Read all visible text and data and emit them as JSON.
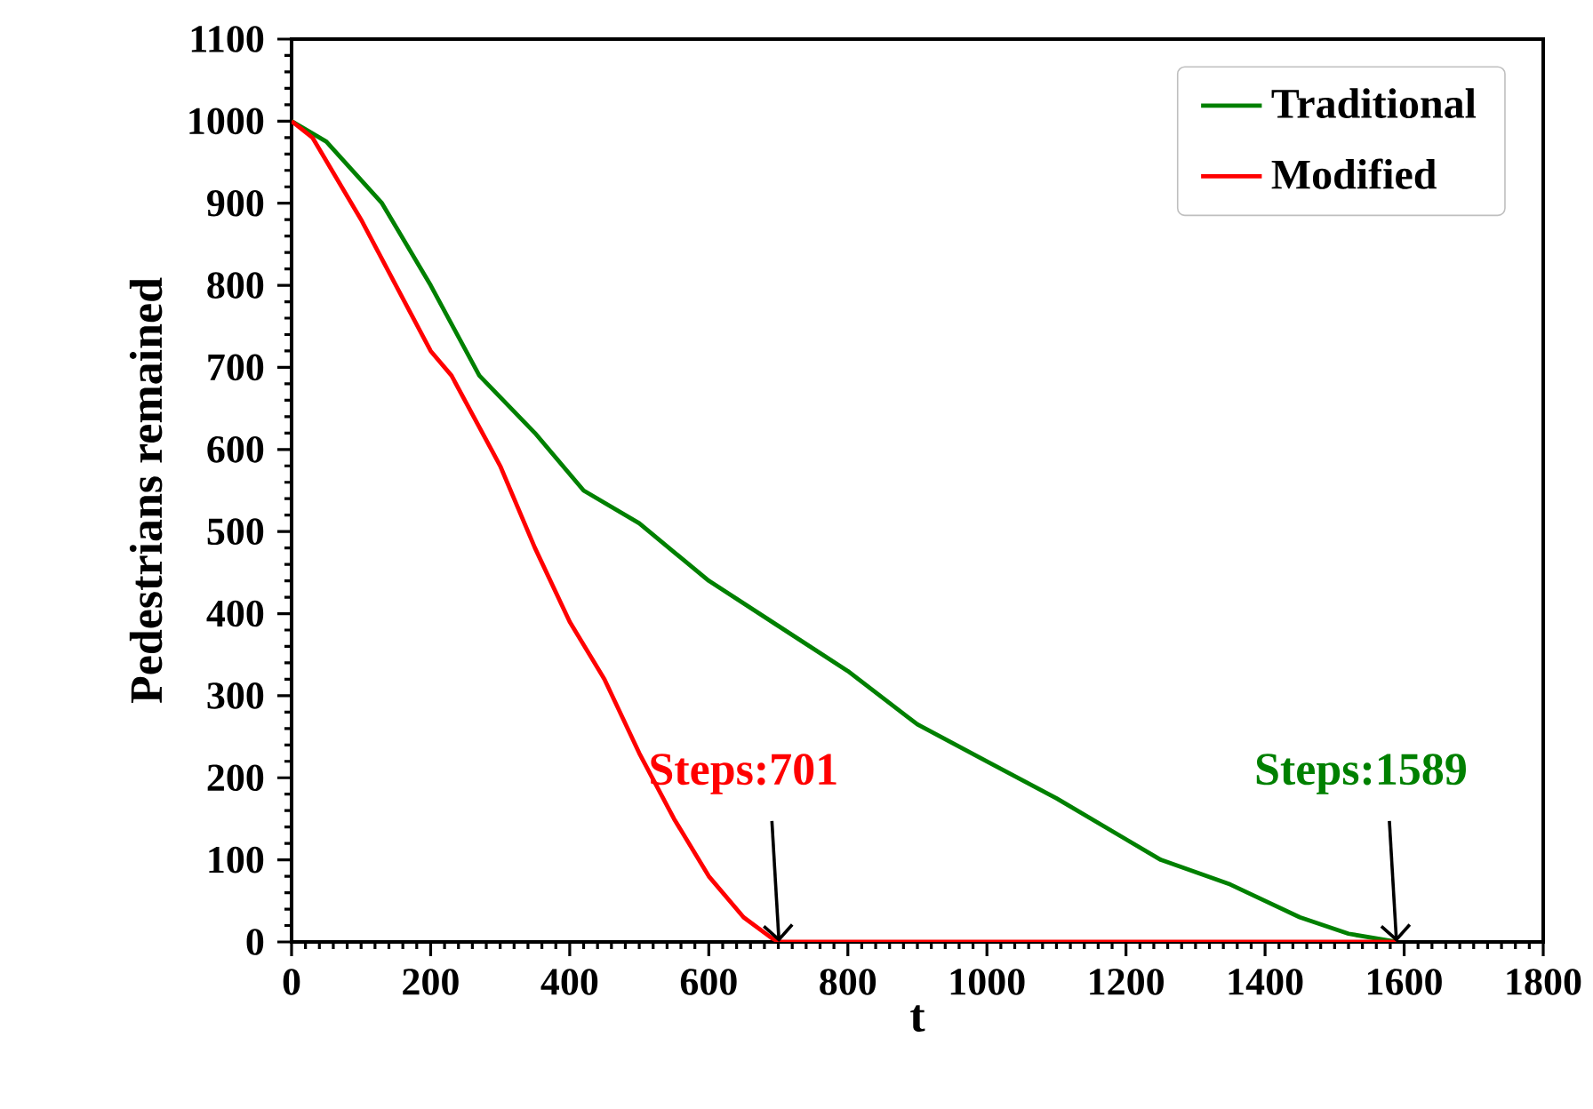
{
  "chart_data": {
    "type": "line",
    "xlabel": "t",
    "ylabel": "Pedestrians remained",
    "xlim": [
      0,
      1800
    ],
    "ylim": [
      0,
      1100
    ],
    "xticks": [
      0,
      200,
      400,
      600,
      800,
      1000,
      1200,
      1400,
      1600,
      1800
    ],
    "yticks": [
      0,
      100,
      200,
      300,
      400,
      500,
      600,
      700,
      800,
      900,
      1000,
      1100
    ],
    "grid": false,
    "legend": "top right",
    "line_style": "solid",
    "marker": "none",
    "series": [
      {
        "name": "Traditional",
        "color": "#008000",
        "x": [
          0,
          50,
          130,
          200,
          270,
          350,
          420,
          500,
          600,
          700,
          800,
          900,
          1000,
          1100,
          1200,
          1250,
          1350,
          1450,
          1520,
          1589
        ],
        "values": [
          1000,
          975,
          900,
          800,
          690,
          620,
          550,
          510,
          440,
          385,
          330,
          265,
          220,
          175,
          125,
          100,
          70,
          30,
          10,
          0
        ]
      },
      {
        "name": "Modified",
        "color": "#ff0000",
        "x": [
          0,
          30,
          100,
          150,
          200,
          230,
          300,
          350,
          400,
          450,
          500,
          550,
          600,
          650,
          690,
          701,
          1589
        ],
        "values": [
          1000,
          980,
          880,
          800,
          720,
          690,
          580,
          480,
          390,
          320,
          230,
          150,
          80,
          30,
          5,
          0,
          0
        ]
      }
    ],
    "annotations": [
      {
        "text": "Steps:1589",
        "x": 1589,
        "y": 0
      },
      {
        "text": "Steps:701",
        "x": 701,
        "y": 0
      }
    ]
  }
}
